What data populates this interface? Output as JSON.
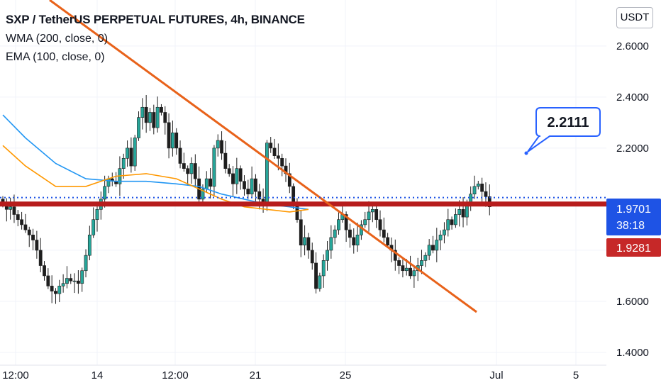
{
  "legend": {
    "title": "SXP / TetherUS PERPETUAL FUTURES, 4h, BINANCE",
    "wma": "WMA (200, close, 0)",
    "ema": "EMA (100, close, 0)"
  },
  "currency_button": "USDT",
  "colors": {
    "up_candle": "#26a69a",
    "down_candle": "#1e1e1e",
    "trendline": "#e8621a",
    "support_line": "#b71c1c",
    "wma": "#2196f3",
    "ema": "#ff9800",
    "price_tag": "#1e53e5",
    "support_tag": "#c62828",
    "callout_border": "#2962ff"
  },
  "chart_data": {
    "type": "candlestick",
    "y_axis": {
      "ticks": [
        "2.6000",
        "2.4000",
        "2.2000",
        "1.6000",
        "1.4000"
      ],
      "ylim": [
        1.35,
        2.78
      ]
    },
    "x_axis": {
      "ticks": [
        "12:00",
        "14",
        "12:00",
        "21",
        "25",
        "Jul",
        "5"
      ]
    },
    "current_price": {
      "label": "1.9701",
      "countdown": "38:18",
      "value": 1.9701
    },
    "support_level": {
      "label": "1.9281",
      "value": 1.9281
    },
    "callout": {
      "label": "2.2111",
      "value": 2.2111
    },
    "trendline": [
      {
        "x": 0.0,
        "y": 2.92
      },
      {
        "x": 83.0,
        "y": 1.51
      }
    ],
    "wma_line": [
      {
        "x": 0,
        "y": 2.33
      },
      {
        "x": 6,
        "y": 2.24
      },
      {
        "x": 14,
        "y": 2.14
      },
      {
        "x": 22,
        "y": 2.08
      },
      {
        "x": 30,
        "y": 2.07
      },
      {
        "x": 38,
        "y": 2.07
      },
      {
        "x": 46,
        "y": 2.06
      },
      {
        "x": 52,
        "y": 2.05
      },
      {
        "x": 58,
        "y": 2.02
      },
      {
        "x": 64,
        "y": 2.0
      },
      {
        "x": 70,
        "y": 1.98
      },
      {
        "x": 76,
        "y": 1.97
      },
      {
        "x": 81,
        "y": 1.96
      }
    ],
    "ema_line": [
      {
        "x": 0,
        "y": 2.21
      },
      {
        "x": 6,
        "y": 2.13
      },
      {
        "x": 14,
        "y": 2.05
      },
      {
        "x": 22,
        "y": 2.05
      },
      {
        "x": 30,
        "y": 2.09
      },
      {
        "x": 38,
        "y": 2.1
      },
      {
        "x": 46,
        "y": 2.08
      },
      {
        "x": 52,
        "y": 2.04
      },
      {
        "x": 58,
        "y": 2.0
      },
      {
        "x": 64,
        "y": 1.97
      },
      {
        "x": 70,
        "y": 1.96
      },
      {
        "x": 76,
        "y": 1.95
      },
      {
        "x": 81,
        "y": 1.96
      }
    ],
    "close": [
      1.98,
      1.96,
      1.97,
      1.94,
      1.92,
      1.9,
      1.88,
      1.86,
      1.84,
      1.8,
      1.74,
      1.7,
      1.66,
      1.64,
      1.63,
      1.66,
      1.67,
      1.69,
      1.68,
      1.68,
      1.67,
      1.72,
      1.78,
      1.86,
      1.92,
      1.96,
      2.0,
      2.05,
      2.08,
      2.07,
      2.06,
      2.12,
      2.16,
      2.2,
      2.13,
      2.24,
      2.32,
      2.36,
      2.3,
      2.34,
      2.28,
      2.36,
      2.34,
      2.3,
      2.2,
      2.26,
      2.2,
      2.14,
      2.12,
      2.1,
      2.14,
      2.08,
      2.0,
      2.04,
      2.08,
      2.05,
      2.2,
      2.23,
      2.18,
      2.12,
      2.1,
      2.06,
      2.12,
      2.07,
      2.04,
      2.02,
      2.08,
      2.03,
      2.0,
      1.98,
      2.22,
      2.2,
      2.17,
      2.16,
      2.13,
      2.1,
      2.05,
      1.98,
      1.92,
      1.82,
      1.85,
      1.8,
      1.75,
      1.65,
      1.7,
      1.76,
      1.8,
      1.85,
      1.88,
      1.92,
      1.94,
      1.88,
      1.85,
      1.82,
      1.86,
      1.9,
      1.92,
      1.95,
      1.96,
      1.92,
      1.88,
      1.85,
      1.82,
      1.8,
      1.76,
      1.74,
      1.72,
      1.73,
      1.7,
      1.72,
      1.74,
      1.76,
      1.78,
      1.82,
      1.8,
      1.84,
      1.86,
      1.88,
      1.92,
      1.9,
      1.94,
      1.96,
      1.93,
      1.98,
      2.02,
      2.05,
      2.06,
      2.03,
      2.01,
      1.97
    ]
  }
}
